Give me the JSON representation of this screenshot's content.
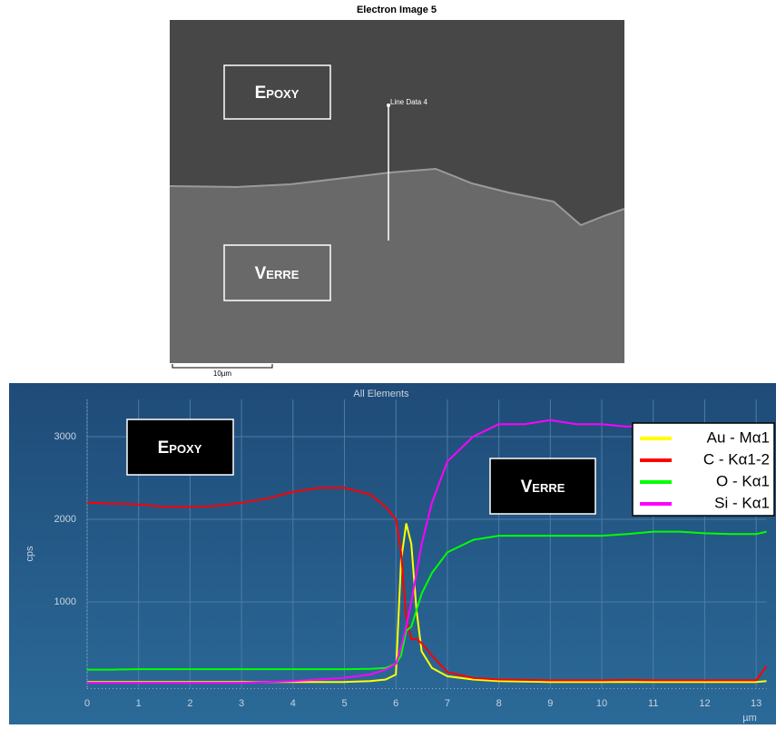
{
  "image": {
    "title": "Electron Image 5",
    "line_label": "Line Data 4",
    "scale_label": "10µm",
    "label_top": "Epoxy",
    "label_bottom": "Verre"
  },
  "chart_data": {
    "type": "line",
    "title": "All Elements",
    "ylabel": "cps",
    "xlabel": "µm",
    "annotations": [
      "Epoxy",
      "Verre"
    ],
    "x": [
      0,
      0.5,
      1,
      1.5,
      2,
      2.5,
      3,
      3.5,
      4,
      4.5,
      5,
      5.5,
      5.8,
      6.0,
      6.1,
      6.2,
      6.3,
      6.4,
      6.5,
      6.7,
      7,
      7.5,
      8,
      8.5,
      9,
      9.5,
      10,
      10.5,
      11,
      11.5,
      12,
      12.5,
      13,
      13.2
    ],
    "series": [
      {
        "name": "Au - Mα1",
        "color": "#ffff00",
        "values": [
          30,
          30,
          30,
          30,
          30,
          30,
          30,
          30,
          30,
          30,
          30,
          40,
          60,
          120,
          1500,
          1950,
          1700,
          900,
          400,
          200,
          100,
          60,
          40,
          35,
          30,
          30,
          30,
          30,
          30,
          30,
          30,
          30,
          30,
          40
        ]
      },
      {
        "name": "C - Kα1-2",
        "color": "#ff0000",
        "values": [
          2200,
          2190,
          2180,
          2150,
          2150,
          2160,
          2200,
          2250,
          2330,
          2380,
          2380,
          2300,
          2150,
          2000,
          1600,
          800,
          550,
          550,
          500,
          350,
          150,
          80,
          60,
          55,
          50,
          50,
          50,
          55,
          50,
          50,
          50,
          50,
          50,
          220
        ]
      },
      {
        "name": "O - Kα1",
        "color": "#00ff00",
        "values": [
          180,
          180,
          185,
          185,
          185,
          185,
          185,
          185,
          185,
          185,
          185,
          190,
          200,
          250,
          350,
          650,
          700,
          900,
          1100,
          1350,
          1600,
          1750,
          1800,
          1800,
          1800,
          1800,
          1800,
          1820,
          1850,
          1850,
          1830,
          1820,
          1820,
          1850
        ]
      },
      {
        "name": "Si - Kα1",
        "color": "#ff00ff",
        "values": [
          20,
          20,
          20,
          20,
          20,
          20,
          20,
          30,
          40,
          60,
          80,
          120,
          180,
          250,
          450,
          700,
          1000,
          1350,
          1700,
          2200,
          2700,
          3000,
          3150,
          3150,
          3200,
          3150,
          3150,
          3120,
          3150,
          3150,
          3150,
          3150,
          3150,
          3150
        ]
      }
    ],
    "xlim": [
      0,
      13.2
    ],
    "ylim": [
      -50,
      3450
    ],
    "xticks": [
      0,
      1,
      2,
      3,
      4,
      5,
      6,
      7,
      8,
      9,
      10,
      11,
      12,
      13
    ],
    "yticks": [
      1000,
      2000,
      3000
    ],
    "grid": true,
    "legend": "upper right"
  }
}
